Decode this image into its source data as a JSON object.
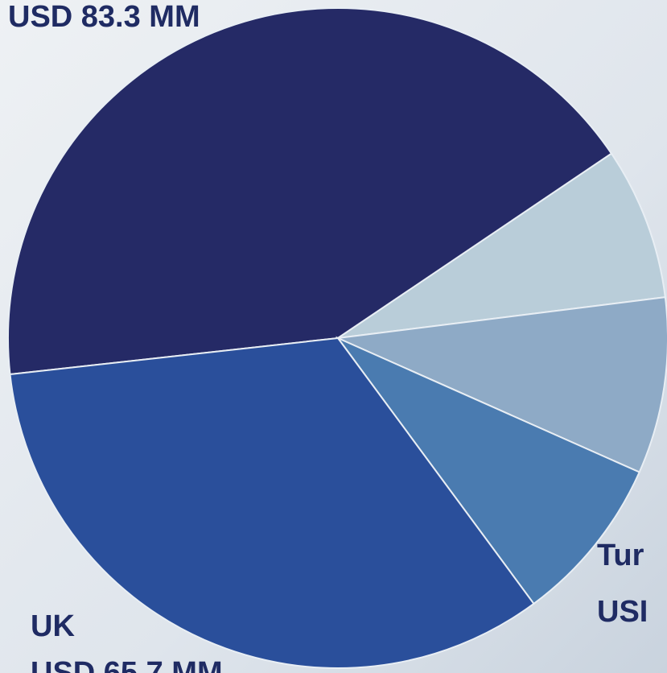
{
  "chart_data": {
    "type": "pie",
    "categories": [
      null,
      null,
      null,
      null,
      "UK"
    ],
    "values": [
      83.3,
      14.7,
      17.0,
      16.2,
      65.7
    ],
    "value_labels": [
      "USD 83.3 MM",
      null,
      null,
      null,
      "USD 65.7 MM"
    ],
    "colors": [
      "#252a66",
      "#b9cdd9",
      "#8eaac6",
      "#4a7bb0",
      "#2a4f9b"
    ],
    "annotations": [
      "Tur",
      "USI"
    ]
  }
}
